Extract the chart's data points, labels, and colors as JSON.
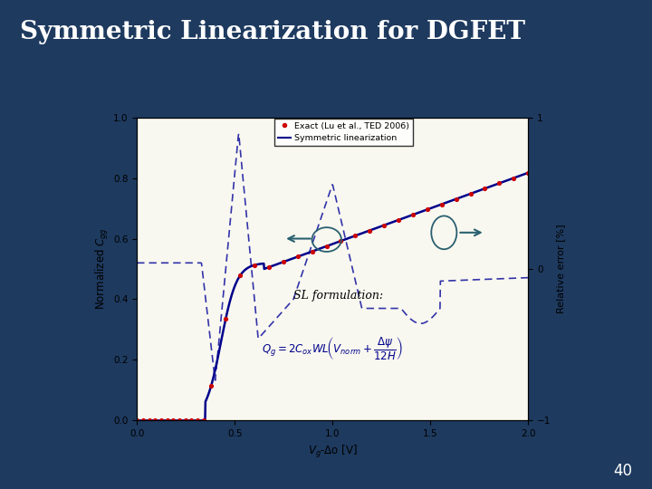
{
  "bg_color": "#1e3a5f",
  "title": "Symmetric Linearization for DGFET",
  "title_color": "#ffffff",
  "title_fontsize": 20,
  "slide_number": "40",
  "plot_bg": "#f8f8f0",
  "ylabel_left": "Normalized $C_{gg}$",
  "ylabel_right": "Relative error [%]",
  "xlabel": "$V_g$-Δo [V]",
  "xlim": [
    0,
    2
  ],
  "ylim_left": [
    0,
    1
  ],
  "ylim_right": [
    -1,
    1
  ],
  "xticks": [
    0,
    0.5,
    1,
    1.5,
    2
  ],
  "yticks_left": [
    0,
    0.2,
    0.4,
    0.6,
    0.8,
    1
  ],
  "legend_exact": "Exact (Lu et al., TED 2006)",
  "legend_sl": "Symmetric linearization",
  "solid_color": "#00008b",
  "dashed_color": "#3333aa",
  "dot_color": "#cc0000",
  "arrow_color": "#2a6070",
  "ellipse_color": "#2a6070"
}
